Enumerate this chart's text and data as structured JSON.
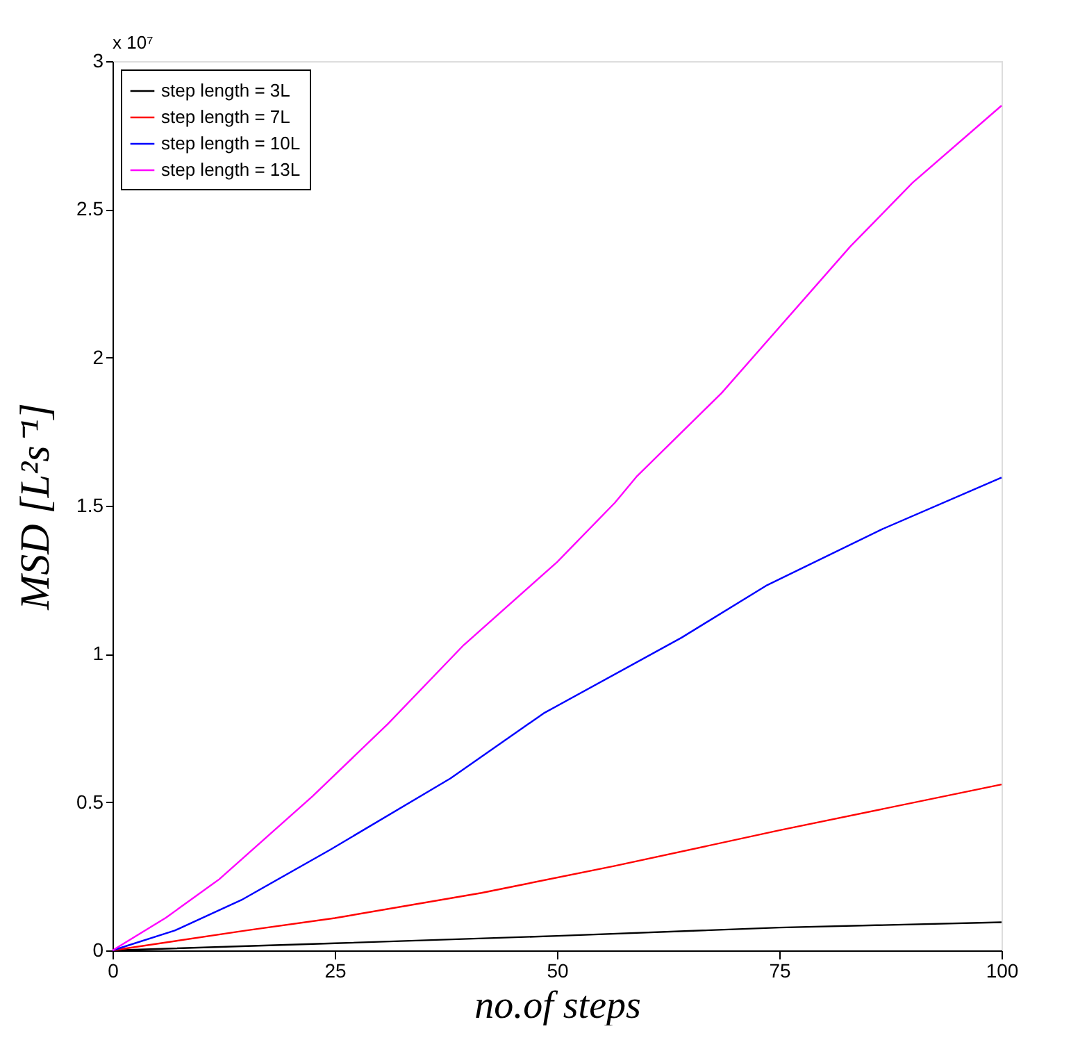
{
  "chart_data": {
    "type": "line",
    "xlabel": "no.of steps",
    "ylabel": "MSD [L²s⁻¹]",
    "annotations": [
      "x 10⁷"
    ],
    "xlim": [
      0,
      100
    ],
    "xticks": [
      0,
      25,
      50,
      75,
      100
    ],
    "ylim": [
      0,
      3
    ],
    "yticks": [
      0,
      0.5,
      1,
      1.5,
      2,
      2.5,
      3
    ],
    "grid": false,
    "legend": "top left",
    "marker": "none",
    "line_style": "solid",
    "series": [
      {
        "name": "step length = 3L",
        "color": "#000000",
        "x": [
          0,
          25,
          50,
          75,
          100
        ],
        "values": [
          0,
          0.024,
          0.049,
          0.077,
          0.095
        ]
      },
      {
        "name": "step length = 7L",
        "color": "#ff0000",
        "x": [
          0,
          15,
          25,
          41.5,
          56.5,
          75,
          100
        ],
        "values": [
          0,
          0.067,
          0.109,
          0.194,
          0.285,
          0.405,
          0.56
        ]
      },
      {
        "name": "step length = 10L",
        "color": "#0000ff",
        "x": [
          0,
          7,
          14.5,
          24.5,
          38,
          48.5,
          64,
          73.5,
          86.5,
          100
        ],
        "values": [
          0,
          0.067,
          0.17,
          0.34,
          0.58,
          0.8,
          1.055,
          1.23,
          1.42,
          1.595
        ]
      },
      {
        "name": "step length = 13L",
        "color": "#ff00ff",
        "x": [
          0,
          6,
          12,
          22.5,
          31,
          39.5,
          50,
          56.5,
          59,
          68.5,
          83,
          90,
          100
        ],
        "values": [
          0,
          0.11,
          0.24,
          0.52,
          0.765,
          1.03,
          1.31,
          1.51,
          1.6,
          1.88,
          2.375,
          2.59,
          2.85
        ]
      }
    ]
  }
}
